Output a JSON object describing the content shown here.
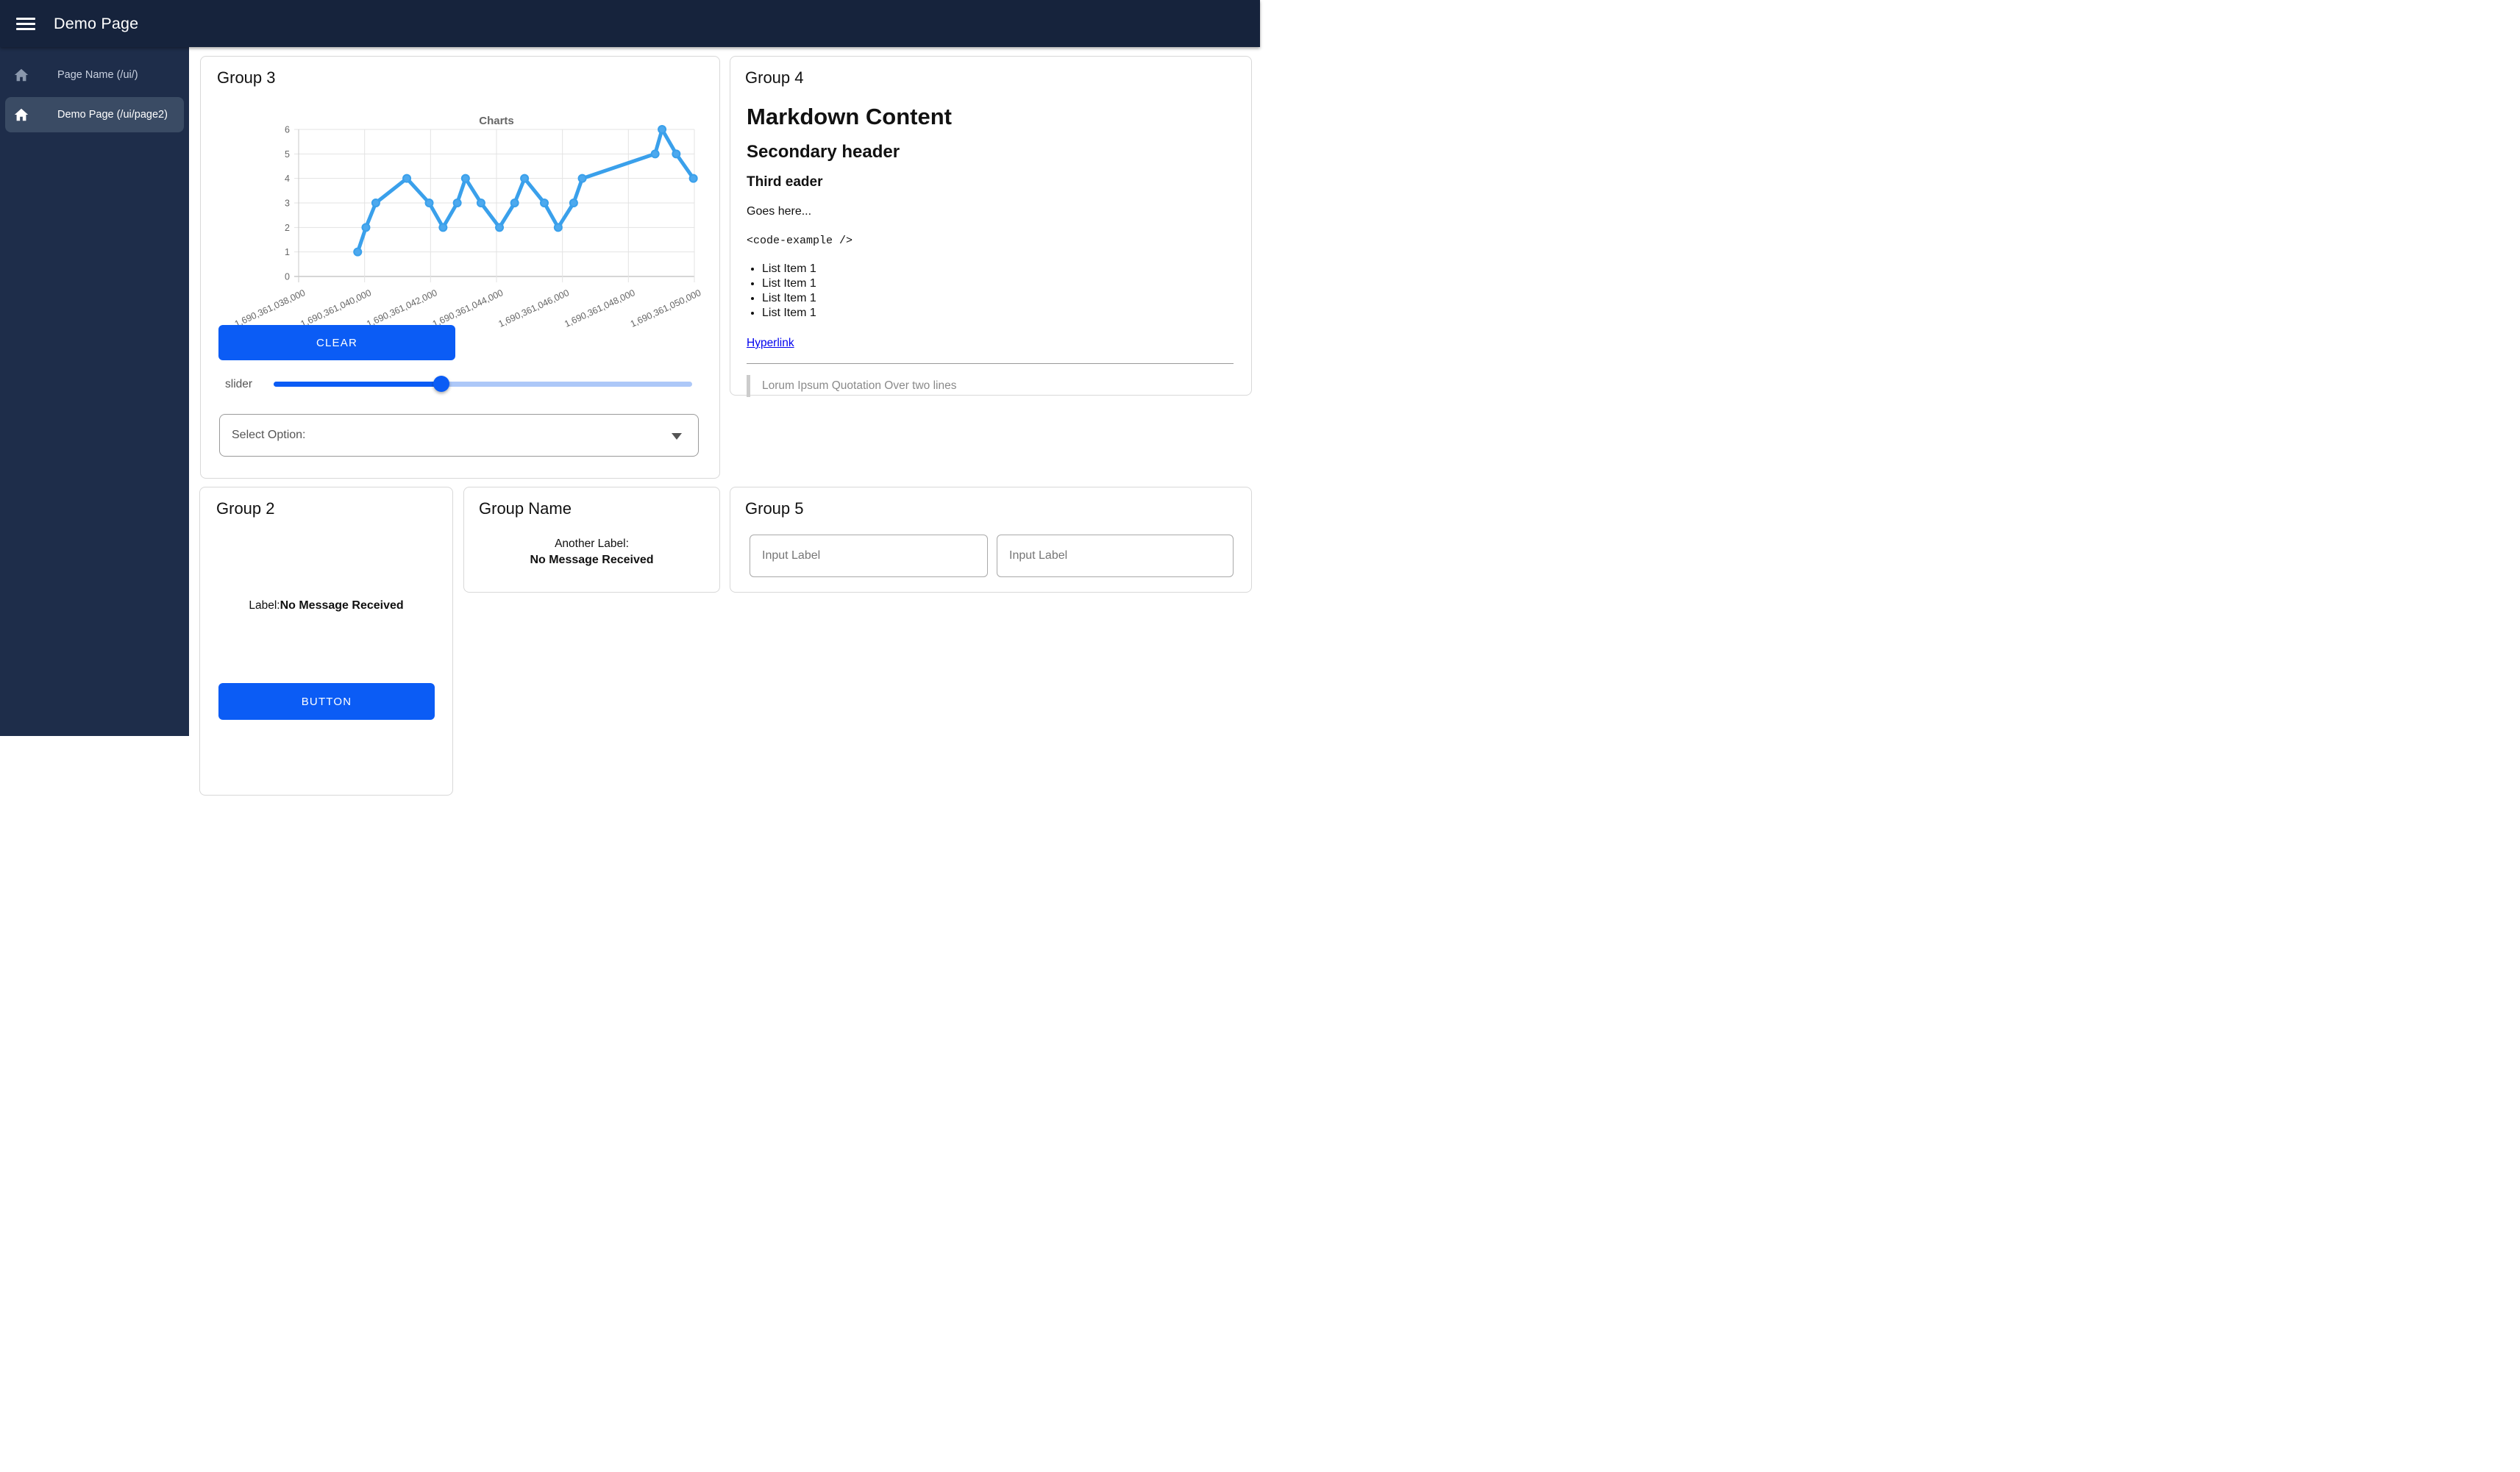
{
  "navbar": {
    "title": "Demo Page"
  },
  "sidebar": {
    "items": [
      {
        "label": "Page Name (/ui/)",
        "active": false
      },
      {
        "label": "Demo Page (/ui/page2)",
        "active": true
      }
    ]
  },
  "group3": {
    "title": "Group 3",
    "clear_button_label": "CLEAR",
    "slider_label": "slider",
    "slider_value_pct": 40,
    "select_label": "Select Option:"
  },
  "group4": {
    "title": "Group 4",
    "markdown": {
      "h1": "Markdown Content",
      "h2": "Secondary header",
      "h3": "Third eader",
      "paragraph": "Goes here...",
      "code": "<code-example />",
      "list_items": [
        "List Item 1",
        "List Item 1",
        "List Item 1",
        "List Item 1"
      ],
      "link_text": "Hyperlink",
      "quote": "Lorum Ipsum Quotation Over two lines"
    }
  },
  "group2": {
    "title": "Group 2",
    "label_prefix": "Label:",
    "label_value": "No Message Received",
    "button_label": "BUTTON"
  },
  "group_name_card": {
    "title": "Group Name",
    "label_prefix": "Another Label:",
    "label_value": "No Message Received"
  },
  "group5": {
    "title": "Group 5",
    "inputs": [
      {
        "placeholder": "Input Label"
      },
      {
        "placeholder": "Input Label"
      }
    ]
  },
  "chart_data": {
    "type": "line",
    "title": "Charts",
    "x": [
      1690361039790,
      1690361040040,
      1690361040340,
      1690361041280,
      1690361041960,
      1690361042380,
      1690361042810,
      1690361043060,
      1690361043530,
      1690361044090,
      1690361044550,
      1690361044850,
      1690361045450,
      1690361045870,
      1690361046340,
      1690361046600,
      1690361048810,
      1690361049020,
      1690361049450,
      1690361049970
    ],
    "y": [
      1,
      2,
      3,
      4,
      3,
      2,
      3,
      4,
      3,
      2,
      3,
      4,
      3,
      2,
      3,
      4,
      5,
      6,
      5,
      4
    ],
    "x_tick_labels": [
      "1,690,361,038,000",
      "1,690,361,040,000",
      "1,690,361,042,000",
      "1,690,361,044,000",
      "1,690,361,046,000",
      "1,690,361,048,000",
      "1,690,361,050,000"
    ],
    "x_range": [
      1690361038000,
      1690361050000
    ],
    "y_ticks": [
      0,
      1,
      2,
      3,
      4,
      5,
      6
    ],
    "ylim": [
      0,
      6
    ],
    "grid": true,
    "legend": false,
    "line_color": "#3AA0EB",
    "point_fill": "#4DA9EE"
  },
  "colors": {
    "header_bg": "#16233C",
    "sidebar_bg": "#1E2D4A",
    "sidebar_active_bg": "#3A4B64",
    "primary_blue": "#0B5CF5",
    "slider_rest": "#ADC8F8",
    "link_blue": "#0000EE"
  }
}
